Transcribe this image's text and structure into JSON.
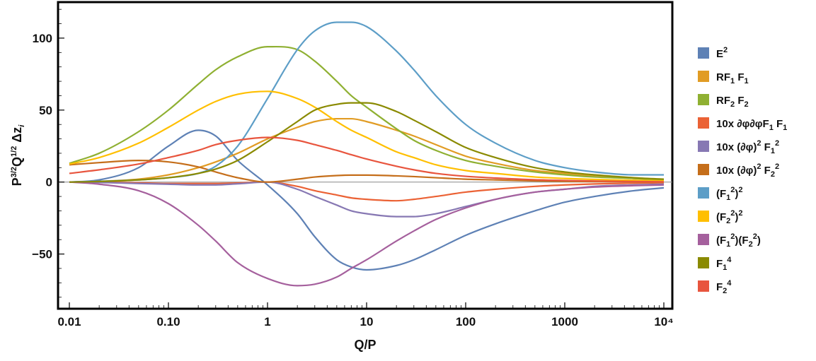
{
  "chart_data": {
    "type": "line",
    "xlabel": "Q/P",
    "ylabel": "P^{3/2} Q^{1/2} Δz_i",
    "x_scale": "log",
    "xlim": [
      0.01,
      10000
    ],
    "ylim": [
      -88,
      125
    ],
    "x_ticks": [
      {
        "value": 0.01,
        "label": "0.01"
      },
      {
        "value": 0.1,
        "label": "0.10"
      },
      {
        "value": 1,
        "label": "1"
      },
      {
        "value": 10,
        "label": "10"
      },
      {
        "value": 100,
        "label": "100"
      },
      {
        "value": 1000,
        "label": "1000"
      },
      {
        "value": 10000,
        "label": "10⁴"
      }
    ],
    "y_ticks": [
      {
        "value": 100,
        "label": "100"
      },
      {
        "value": 50,
        "label": "50"
      },
      {
        "value": 0,
        "label": "0"
      },
      {
        "value": -50,
        "label": "−50"
      }
    ],
    "legend_position": "right",
    "grid": false,
    "x": [
      0.01,
      0.02,
      0.05,
      0.1,
      0.2,
      0.3,
      0.5,
      1,
      2,
      3,
      5,
      7,
      10,
      20,
      30,
      50,
      100,
      200,
      500,
      1000,
      2000,
      5000,
      10000
    ],
    "series": [
      {
        "name": "E^2",
        "color": "#5E81B5",
        "values": [
          0,
          1.5,
          10,
          25,
          36,
          32,
          15,
          -2,
          -22,
          -38,
          -54,
          -59,
          -61,
          -58,
          -54,
          -47,
          -37,
          -29,
          -20,
          -14,
          -10,
          -6,
          -4
        ]
      },
      {
        "name": "RF_1 F_1",
        "color": "#E19C24",
        "values": [
          0,
          0.5,
          2,
          5,
          10,
          14,
          20,
          30,
          38,
          42,
          44,
          44,
          42,
          36,
          32,
          26,
          18,
          13,
          8,
          6,
          4,
          2.5,
          1.5
        ]
      },
      {
        "name": "RF_2 F_2",
        "color": "#8FB032",
        "values": [
          13,
          20,
          35,
          50,
          68,
          78,
          87,
          94,
          92,
          84,
          70,
          60,
          52,
          37,
          29,
          22,
          15,
          11,
          7,
          5,
          3.5,
          2.5,
          1.5
        ]
      },
      {
        "name": "10x ∂φ∂φF_1 F_1",
        "color": "#EB6235",
        "values": [
          0,
          -0.2,
          -0.5,
          -1,
          -1,
          -1,
          -0.6,
          0,
          -3,
          -6,
          -9,
          -11,
          -12,
          -13,
          -12,
          -10,
          -7,
          -5,
          -3,
          -2,
          -1.3,
          -0.8,
          -0.5
        ]
      },
      {
        "name": "10x (∂φ)^2 F_1^2",
        "color": "#8778B3",
        "values": [
          0,
          -0.3,
          -1,
          -1.5,
          -2,
          -2,
          -1.2,
          0,
          -5,
          -10,
          -16,
          -20,
          -22,
          -24,
          -24,
          -22,
          -17,
          -12,
          -7,
          -5,
          -3,
          -2,
          -1.5
        ]
      },
      {
        "name": "10x (∂φ)^2 F_2^2",
        "color": "#C56E1A",
        "values": [
          12,
          13.5,
          15,
          14,
          10.5,
          7,
          3,
          0,
          2,
          3.5,
          4.5,
          4.8,
          4.8,
          4.3,
          3.8,
          3,
          2,
          1.5,
          0.8,
          0.5,
          0.3,
          0.2,
          0.1
        ]
      },
      {
        "name": "(F_1^2)^2",
        "color": "#5D9EC7",
        "values": [
          0,
          0.5,
          1.5,
          3,
          6,
          11,
          25,
          58,
          92,
          105,
          111,
          111,
          108,
          91,
          78,
          60,
          40,
          27,
          15,
          10,
          7,
          5,
          5
        ]
      },
      {
        "name": "(F_2^2)^2",
        "color": "#FFBF00",
        "values": [
          12.5,
          17,
          27,
          38,
          50,
          56,
          61,
          63,
          58,
          52,
          42,
          36,
          31,
          21,
          17,
          12,
          8,
          6,
          3.5,
          2.5,
          1.8,
          1.2,
          0.8
        ]
      },
      {
        "name": "(F_1^2)(F_2^2)",
        "color": "#A5609D",
        "values": [
          0,
          -1.5,
          -6,
          -15,
          -30,
          -41,
          -56,
          -67,
          -72,
          -71,
          -66,
          -60,
          -54,
          -41,
          -34,
          -26,
          -18,
          -12,
          -7,
          -5,
          -3.5,
          -2.5,
          -2
        ]
      },
      {
        "name": "F_1^4",
        "color": "#8A8A00",
        "values": [
          0,
          0.4,
          1.5,
          3,
          6,
          9,
          15,
          28,
          42,
          50,
          54,
          55,
          55,
          49,
          43,
          35,
          24,
          17,
          10,
          7,
          5,
          3,
          2
        ]
      },
      {
        "name": "F_2^4",
        "color": "#E8553E",
        "values": [
          6,
          8.5,
          12.5,
          17,
          22,
          26,
          29,
          31,
          29,
          26,
          22,
          19,
          16,
          11,
          8.5,
          6,
          4,
          2.8,
          1.6,
          1.1,
          0.7,
          0.4,
          0.2
        ]
      }
    ]
  }
}
